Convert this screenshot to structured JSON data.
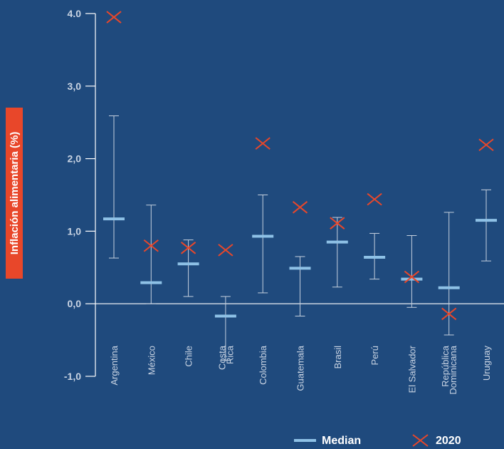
{
  "chart_data": {
    "type": "errorbar",
    "ylabel": "Inflación alimentaria (%)",
    "ylim": [
      -1.0,
      4.0
    ],
    "y_ticks": [
      {
        "value": 4.0,
        "label": "4.0"
      },
      {
        "value": 3.0,
        "label": "3,0"
      },
      {
        "value": 2.0,
        "label": "2,0"
      },
      {
        "value": 1.0,
        "label": "1,0"
      },
      {
        "value": 0.0,
        "label": "0,0"
      },
      {
        "value": -1.0,
        "label": "-1,0"
      }
    ],
    "categories": [
      [
        "Argentina"
      ],
      [
        "México"
      ],
      [
        "Chile"
      ],
      [
        "Costa",
        "Rica"
      ],
      [
        "Colombia"
      ],
      [
        "Guatemala"
      ],
      [
        "Brasil"
      ],
      [
        "Perú"
      ],
      [
        "El Salvador"
      ],
      [
        "República",
        "Dominicana"
      ],
      [
        "Uruguay"
      ]
    ],
    "series": [
      {
        "name": "Median",
        "values": [
          1.17,
          0.29,
          0.55,
          -0.17,
          0.93,
          0.49,
          0.85,
          0.64,
          0.34,
          0.22,
          1.15
        ]
      },
      {
        "name": "2020",
        "values": [
          3.95,
          0.8,
          0.77,
          0.74,
          2.21,
          1.33,
          1.11,
          1.44,
          0.37,
          -0.14,
          2.19
        ]
      }
    ],
    "range_low": [
      0.63,
      0.0,
      0.1,
      -0.78,
      0.15,
      -0.17,
      0.23,
      0.34,
      -0.05,
      -0.43,
      0.59
    ],
    "range_high": [
      2.59,
      1.36,
      0.88,
      0.1,
      1.5,
      0.65,
      1.19,
      0.97,
      0.94,
      1.26,
      1.57
    ],
    "colors": {
      "median": "#8ec1e6",
      "marker_2020": "#e8472a",
      "whisker": "#c5d0de",
      "axis": "#ffffff",
      "background": "#1f4a7d",
      "ylabel_bg": "#e8472a"
    },
    "legend": {
      "placement": "bottom-right",
      "items": [
        "Median",
        "2020"
      ]
    }
  }
}
